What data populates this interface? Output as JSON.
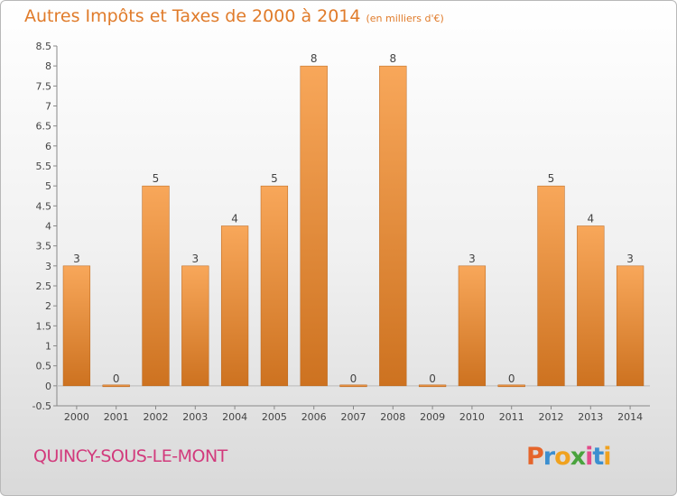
{
  "chart_data": {
    "type": "bar",
    "title": "Autres Impôts et Taxes de 2000 à 2014",
    "subtitle": "(en milliers d'€)",
    "categories": [
      "2000",
      "2001",
      "2002",
      "2003",
      "2004",
      "2005",
      "2006",
      "2007",
      "2008",
      "2009",
      "2010",
      "2011",
      "2012",
      "2013",
      "2014"
    ],
    "values": [
      3,
      0,
      5,
      3,
      4,
      5,
      8,
      0,
      8,
      0,
      3,
      0,
      5,
      4,
      3
    ],
    "ylim": [
      -0.5,
      8.5
    ],
    "yticks": [
      -0.5,
      0,
      0.5,
      1,
      1.5,
      2,
      2.5,
      3,
      3.5,
      4,
      4.5,
      5,
      5.5,
      6,
      6.5,
      7,
      7.5,
      8,
      8.5
    ],
    "grid": false,
    "bar_colors": {
      "top": "#f8a75a",
      "bottom": "#cd7220",
      "edge": "#b8651c"
    }
  },
  "commune": "QUINCY-SOUS-LE-MONT",
  "logo": {
    "letters": [
      "P",
      "r",
      "o",
      "x",
      "i",
      "t",
      "i"
    ],
    "colors": [
      "#e5652b",
      "#3c8fd0",
      "#f0a21f",
      "#4aa33e",
      "#e34b8a",
      "#3c8fd0",
      "#f0a21f"
    ]
  }
}
